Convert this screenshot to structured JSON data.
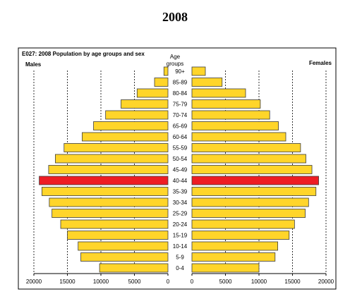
{
  "page": {
    "title": "2008"
  },
  "chart_data": {
    "type": "bar",
    "title": "E027: 2008 Population by age groups and sex",
    "left_label": "Males",
    "right_label": "Females",
    "center_label_line1": "Age",
    "center_label_line2": "groups",
    "categories": [
      "0-4",
      "5-9",
      "10-14",
      "15-19",
      "20-24",
      "25-29",
      "30-34",
      "35-39",
      "40-44",
      "45-49",
      "50-54",
      "55-59",
      "60-64",
      "65-69",
      "70-74",
      "75-79",
      "80-84",
      "85-89",
      "90+"
    ],
    "series": [
      {
        "name": "Males",
        "values": [
          10200,
          13000,
          13400,
          15000,
          16000,
          17300,
          17700,
          18800,
          19200,
          17800,
          16800,
          15500,
          12800,
          11100,
          9300,
          7000,
          4600,
          2000,
          600
        ]
      },
      {
        "name": "Females",
        "values": [
          10000,
          12400,
          12800,
          14500,
          15300,
          16900,
          17400,
          18500,
          18900,
          17900,
          17000,
          16200,
          14000,
          12900,
          11600,
          10200,
          8000,
          4500,
          2000
        ]
      }
    ],
    "highlight_category": "40-44",
    "colors": {
      "bar": "#ffd52a",
      "highlight": "#ee1c24",
      "outline": "#3c3c3c"
    },
    "xlim": [
      0,
      20000
    ],
    "ticks": [
      "20000",
      "15000",
      "10000",
      "5000",
      "0"
    ],
    "ticks_right": [
      "0",
      "5000",
      "10000",
      "15000",
      "20000"
    ],
    "grid": "dashed vertical at 5000-interval ticks"
  }
}
